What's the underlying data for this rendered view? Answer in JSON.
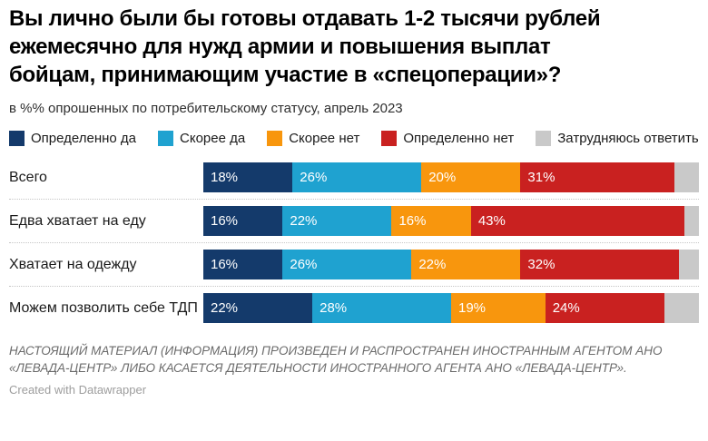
{
  "chart": {
    "title_lines": [
      "Вы лично были бы готовы отдавать 1-2 тысячи рублей",
      "ежемесячно для нужд армии и повышения выплат",
      "бойцам, принимающим участие в «спецоперации»?"
    ],
    "subtitle": "в %% опрошенных по потребительскому статусу, апрель 2023"
  },
  "chart_data": {
    "type": "bar",
    "stacked": true,
    "orientation": "horizontal",
    "title": "Вы лично были бы готовы отдавать 1-2 тысячи рублей ежемесячно для нужд армии и повышения выплат бойцам, принимающим участие в «спецоперации»?",
    "subtitle": "в %% опрошенных по потребительскому статусу, апрель 2023",
    "unit": "%",
    "xlim": [
      0,
      100
    ],
    "legend_position": "top",
    "value_labels": "inside-left",
    "categories": [
      "Всего",
      "Едва хватает на еду",
      "Хватает на одежду",
      "Можем позволить себе ТДП"
    ],
    "series": [
      {
        "name": "Определенно да",
        "color": "#143A6B",
        "values": [
          18,
          16,
          16,
          22
        ]
      },
      {
        "name": "Скорее да",
        "color": "#1FA2D0",
        "values": [
          26,
          22,
          26,
          28
        ]
      },
      {
        "name": "Скорее нет",
        "color": "#F8960D",
        "values": [
          20,
          16,
          22,
          19
        ]
      },
      {
        "name": "Определенно нет",
        "color": "#C92120",
        "values": [
          31,
          43,
          32,
          24
        ]
      },
      {
        "name": "Затрудняюсь ответить",
        "color": "#C9C9C9",
        "values": [
          5,
          3,
          4,
          7
        ],
        "labels_shown": false
      }
    ]
  },
  "footer": {
    "disclaimer": "НАСТОЯЩИЙ МАТЕРИАЛ (ИНФОРМАЦИЯ) ПРОИЗВЕДЕН И РАСПРОСТРАНЕН ИНОСТРАННЫМ АГЕНТОМ АНО «ЛЕВАДА-ЦЕНТР» ЛИБО КАСАЕТСЯ ДЕЯТЕЛЬНОСТИ ИНОСТРАННОГО АГЕНТА АНО «ЛЕВАДА-ЦЕНТР».",
    "credit": "Created with Datawrapper"
  }
}
